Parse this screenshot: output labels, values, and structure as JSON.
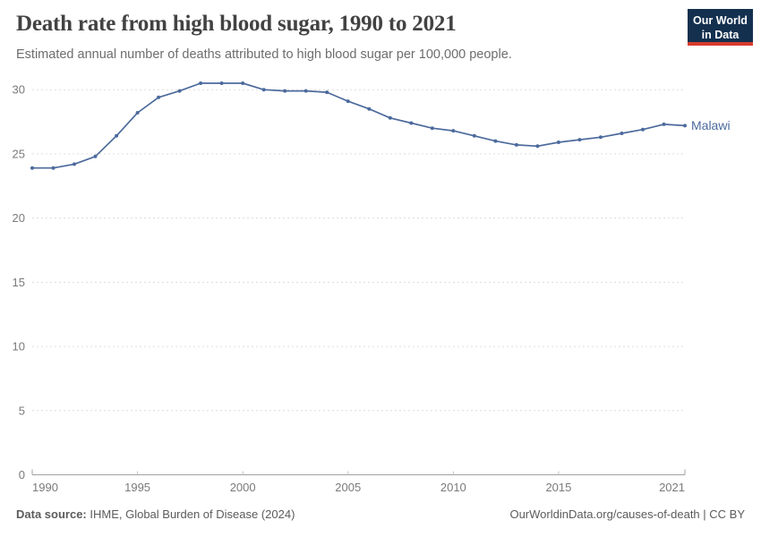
{
  "header": {
    "title": "Death rate from high blood sugar, 1990 to 2021",
    "subtitle": "Estimated annual number of deaths attributed to high blood sugar per 100,000 people.",
    "logo": {
      "line1": "Our World",
      "line2": "in Data",
      "bg_color": "#14304f",
      "accent_color": "#d73c2d"
    }
  },
  "chart_data": {
    "type": "line",
    "title": "Death rate from high blood sugar, 1990 to 2021",
    "xlabel": "",
    "ylabel": "",
    "x": [
      1990,
      1991,
      1992,
      1993,
      1994,
      1995,
      1996,
      1997,
      1998,
      1999,
      2000,
      2001,
      2002,
      2003,
      2004,
      2005,
      2006,
      2007,
      2008,
      2009,
      2010,
      2011,
      2012,
      2013,
      2014,
      2015,
      2016,
      2017,
      2018,
      2019,
      2020,
      2021
    ],
    "series": [
      {
        "name": "Malawi",
        "color": "#4C6A9C",
        "values": [
          23.9,
          23.9,
          24.2,
          24.8,
          26.4,
          28.2,
          29.4,
          29.9,
          30.5,
          30.5,
          30.5,
          30.0,
          29.9,
          29.9,
          29.8,
          29.1,
          28.5,
          27.8,
          27.4,
          27.0,
          26.8,
          26.4,
          26.0,
          25.7,
          25.6,
          25.9,
          26.1,
          26.3,
          26.6,
          26.9,
          27.3,
          27.2
        ]
      }
    ],
    "ylim": [
      0,
      31
    ],
    "yticks": [
      0,
      5,
      10,
      15,
      20,
      25,
      30
    ],
    "xticks": [
      1990,
      1995,
      2000,
      2005,
      2010,
      2015,
      2021
    ],
    "grid": "horizontal-dashed",
    "legend": "end-of-line-label",
    "marker": "dot"
  },
  "colors": {
    "grid": "#dcdcdc",
    "axis": "#a1a1a1",
    "tick": "#c3c3c3",
    "axis_text": "#7a7a7a",
    "line": "#4C6A9C"
  },
  "footer": {
    "source_label": "Data source:",
    "source_text": " IHME, Global Burden of Disease (2024)",
    "credit": "OurWorldinData.org/causes-of-death | CC BY"
  }
}
